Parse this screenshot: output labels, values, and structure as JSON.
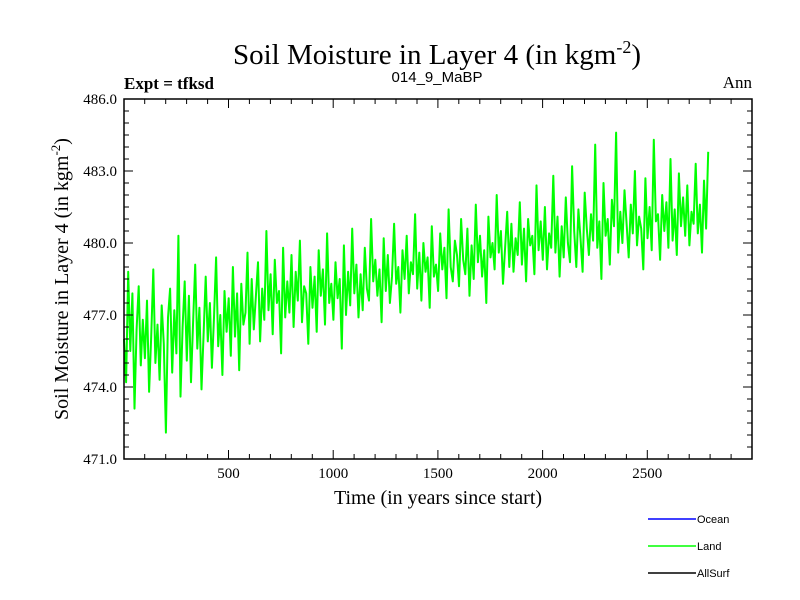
{
  "chart_data": {
    "type": "line",
    "title": "Soil Moisture in Layer 4 (in kgm",
    "title_exponent": "-2",
    "title_close": ")",
    "left_label": "Expt = tfksd",
    "center_label": "014_9_MaBP",
    "right_label": "Ann",
    "xlabel": "Time (in years since start)",
    "ylabel": "Soil Moisture in Layer 4 (in kgm",
    "ylabel_exponent": "-2",
    "ylabel_close": ")",
    "xlim": [
      1,
      3000
    ],
    "ylim": [
      471.0,
      486.0
    ],
    "x_ticks": [
      500,
      1000,
      1500,
      2000,
      2500
    ],
    "x_tick_labels": [
      "500",
      "1000",
      "1500",
      "2000",
      "2500"
    ],
    "y_ticks": [
      471.0,
      474.0,
      477.0,
      480.0,
      483.0,
      486.0
    ],
    "y_tick_labels": [
      "471.0",
      "474.0",
      "477.0",
      "480.0",
      "483.0",
      "486.0"
    ],
    "x_minor_step": 100,
    "y_minor_step": 0.5,
    "series": [
      {
        "name": "Land",
        "color": "#00ff00",
        "x_start": 1,
        "x_step": 10,
        "values": [
          476.0,
          474.2,
          478.8,
          475.5,
          477.9,
          473.1,
          476.4,
          478.2,
          474.9,
          476.8,
          475.2,
          477.6,
          473.8,
          476.1,
          478.9,
          475.0,
          476.6,
          474.3,
          477.4,
          475.8,
          472.1,
          476.9,
          478.1,
          474.6,
          477.2,
          475.4,
          480.3,
          473.6,
          476.5,
          478.4,
          475.1,
          477.8,
          474.2,
          476.7,
          479.1,
          475.6,
          477.3,
          473.9,
          476.2,
          478.6,
          475.9,
          477.5,
          474.8,
          476.9,
          479.4,
          475.7,
          477.0,
          474.5,
          478.0,
          476.3,
          477.7,
          475.3,
          479.0,
          476.1,
          477.9,
          474.7,
          478.3,
          476.6,
          477.1,
          479.6,
          475.8,
          478.5,
          476.4,
          477.8,
          479.2,
          475.9,
          478.1,
          476.8,
          480.5,
          477.2,
          478.7,
          476.2,
          479.3,
          477.5,
          478.0,
          475.4,
          479.8,
          476.9,
          478.4,
          477.1,
          479.5,
          476.5,
          478.8,
          477.6,
          480.1,
          476.7,
          478.2,
          477.9,
          475.8,
          479.0,
          477.3,
          478.6,
          476.3,
          479.7,
          477.8,
          478.9,
          476.6,
          480.4,
          477.5,
          478.3,
          476.8,
          479.2,
          477.7,
          478.5,
          475.6,
          479.9,
          477.0,
          478.8,
          477.4,
          480.6,
          477.9,
          479.1,
          476.9,
          478.7,
          477.2,
          479.8,
          478.1,
          477.6,
          481.0,
          478.4,
          479.3,
          477.8,
          478.9,
          476.7,
          480.2,
          478.0,
          479.5,
          477.5,
          478.6,
          480.8,
          478.3,
          479.0,
          477.1,
          479.7,
          478.5,
          480.3,
          477.9,
          479.2,
          478.7,
          481.2,
          478.1,
          479.6,
          477.6,
          480.0,
          478.8,
          479.4,
          477.3,
          480.7,
          478.6,
          479.1,
          478.0,
          480.4,
          478.9,
          479.8,
          477.7,
          481.4,
          479.0,
          478.4,
          480.1,
          479.5,
          478.2,
          481.0,
          479.3,
          478.7,
          480.6,
          477.8,
          479.9,
          478.5,
          481.6,
          479.2,
          480.3,
          478.6,
          479.7,
          477.5,
          481.1,
          479.4,
          480.0,
          478.9,
          482.0,
          479.6,
          480.5,
          478.3,
          479.8,
          481.3,
          479.0,
          480.8,
          478.8,
          480.2,
          479.5,
          481.7,
          479.1,
          480.6,
          478.4,
          481.0,
          479.9,
          480.3,
          478.7,
          482.4,
          479.7,
          480.9,
          479.3,
          481.5,
          478.9,
          480.4,
          479.8,
          482.8,
          479.6,
          481.1,
          478.6,
          480.7,
          479.4,
          481.9,
          480.0,
          479.2,
          483.2,
          480.5,
          479.0,
          481.4,
          480.2,
          478.8,
          482.1,
          480.6,
          479.5,
          481.2,
          480.1,
          484.1,
          479.8,
          480.9,
          478.5,
          482.5,
          480.3,
          481.0,
          479.1,
          481.8,
          480.7,
          484.6,
          479.6,
          481.3,
          480.0,
          482.2,
          480.8,
          479.4,
          481.6,
          480.4,
          483.0,
          479.9,
          481.1,
          480.6,
          478.9,
          482.7,
          480.2,
          481.5,
          479.7,
          484.3,
          480.9,
          481.2,
          479.3,
          482.0,
          480.5,
          481.7,
          479.8,
          483.5,
          480.1,
          481.4,
          479.5,
          482.9,
          480.7,
          481.9,
          480.3,
          482.4,
          479.9,
          481.3,
          480.8,
          483.3,
          480.4,
          481.6,
          479.6,
          482.6,
          480.6,
          483.8
        ]
      }
    ],
    "legend": {
      "placement": "bottom-right",
      "entries": [
        {
          "label": "Ocean",
          "color": "#0000ff"
        },
        {
          "label": "Land",
          "color": "#00ff00"
        },
        {
          "label": "AllSurf",
          "color": "#000000"
        }
      ]
    },
    "grid": false
  }
}
